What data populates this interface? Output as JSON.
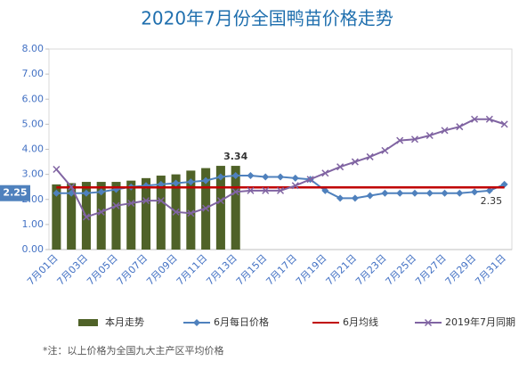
{
  "chart_data": {
    "type": "bar",
    "title": "2020年7月份全国鸭苗价格走势",
    "footnote": "*注：以上价格为全国九大主产区平均价格",
    "categories": [
      "7月01日",
      null,
      "7月03日",
      null,
      "7月05日",
      null,
      "7月07日",
      null,
      "7月09日",
      null,
      "7月11日",
      null,
      "7月13日",
      null,
      "7月15日",
      null,
      "7月17日",
      null,
      "7月19日",
      null,
      "7月21日",
      null,
      "7月23日",
      null,
      "7月25日",
      null,
      "7月27日",
      null,
      "7月29日",
      null,
      "7月31日"
    ],
    "ylim": [
      0,
      8
    ],
    "yticks": [
      {
        "value": 0,
        "label": "0.00"
      },
      {
        "value": 1,
        "label": "1.00"
      },
      {
        "value": 2,
        "label": "2.00"
      },
      {
        "value": 3,
        "label": "3.00"
      },
      {
        "value": 4,
        "label": "4.00"
      },
      {
        "value": 5,
        "label": "5.00"
      },
      {
        "value": 6,
        "label": "6.00"
      },
      {
        "value": 7,
        "label": "7.00"
      },
      {
        "value": 8,
        "label": "8.00"
      }
    ],
    "grid": false,
    "legend": "bottom",
    "series": [
      {
        "name": "本月走势",
        "type": "bar",
        "color": "#4f6228",
        "values": [
          2.6,
          2.65,
          2.7,
          2.7,
          2.7,
          2.75,
          2.85,
          2.95,
          3.0,
          3.15,
          3.25,
          3.34,
          3.34,
          null,
          null,
          null,
          null,
          null,
          null,
          null,
          null,
          null,
          null,
          null,
          null,
          null,
          null,
          null,
          null,
          null,
          null
        ],
        "value_labels": [
          null,
          null,
          null,
          null,
          null,
          null,
          null,
          null,
          null,
          null,
          null,
          null,
          "3.34",
          null,
          null,
          null,
          null,
          null,
          null,
          null,
          null,
          null,
          null,
          null,
          null,
          null,
          null,
          null,
          null,
          null,
          null
        ]
      },
      {
        "name": "6月每日价格",
        "type": "line",
        "marker": "diamond",
        "color": "#4f81bd",
        "values": [
          2.25,
          2.25,
          2.25,
          2.3,
          2.4,
          2.5,
          2.55,
          2.6,
          2.65,
          2.7,
          2.75,
          2.9,
          2.95,
          2.95,
          2.9,
          2.9,
          2.85,
          2.8,
          2.35,
          2.05,
          2.05,
          2.15,
          2.25,
          2.25,
          2.25,
          2.25,
          2.25,
          2.25,
          2.3,
          2.35,
          2.6
        ],
        "value_labels": [
          "2.25",
          null,
          null,
          null,
          null,
          null,
          null,
          null,
          null,
          null,
          null,
          null,
          null,
          null,
          null,
          null,
          null,
          null,
          null,
          null,
          null,
          null,
          null,
          null,
          null,
          null,
          null,
          null,
          null,
          "2.35",
          null
        ]
      },
      {
        "name": "6月均线",
        "type": "line",
        "marker": "none",
        "color": "#c00000",
        "values": [
          2.48,
          2.48,
          2.48,
          2.48,
          2.48,
          2.48,
          2.48,
          2.48,
          2.48,
          2.48,
          2.48,
          2.48,
          2.48,
          2.48,
          2.48,
          2.48,
          2.48,
          2.48,
          2.48,
          2.48,
          2.48,
          2.48,
          2.48,
          2.48,
          2.48,
          2.48,
          2.48,
          2.48,
          2.48,
          2.48,
          2.48
        ]
      },
      {
        "name": "2019年7月同期",
        "type": "line",
        "marker": "x",
        "color": "#8064a2",
        "values": [
          3.2,
          2.5,
          1.3,
          1.5,
          1.75,
          1.85,
          1.95,
          1.95,
          1.5,
          1.45,
          1.65,
          1.95,
          2.3,
          2.35,
          2.35,
          2.35,
          2.55,
          2.8,
          3.05,
          3.3,
          3.5,
          3.7,
          3.95,
          4.35,
          4.4,
          4.55,
          4.75,
          4.9,
          5.2,
          5.2,
          5.0
        ]
      }
    ]
  }
}
